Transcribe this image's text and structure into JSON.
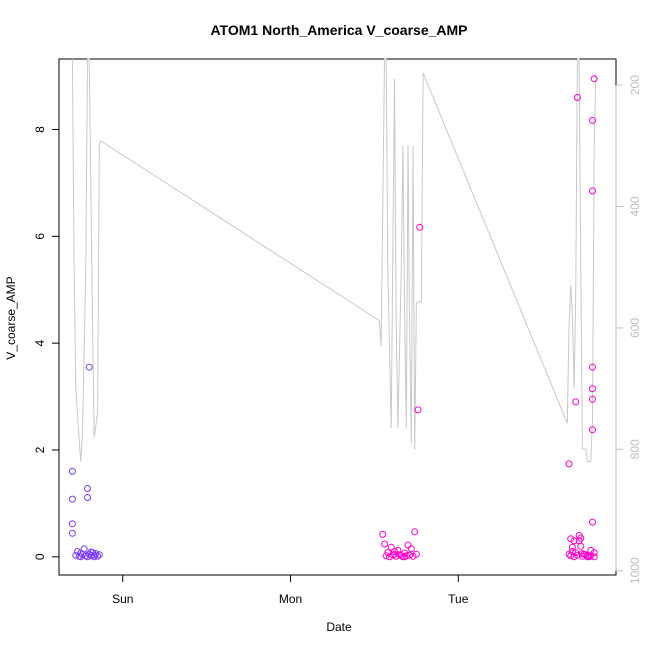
{
  "chart_data": {
    "type": "scatter",
    "title": "ATOM1 North_America V_coarse_AMP",
    "xlabel": "Date",
    "ylabel": "V_coarse_AMP",
    "x_ticks": [
      "Sun",
      "Mon",
      "Tue"
    ],
    "x_tick_days": [
      1.0,
      2.0,
      3.0
    ],
    "xlim": [
      0.62,
      3.94
    ],
    "ylim": [
      -0.34,
      9.32
    ],
    "y_ticks": [
      0,
      2,
      4,
      6,
      8
    ],
    "y2_ticks": [
      200,
      400,
      600,
      800,
      1000
    ],
    "y2lim": [
      1007,
      157
    ],
    "y2_reversed": true,
    "grid": false,
    "legend": "none",
    "colors": {
      "early": "#7a3cf3",
      "late": "#ff00cc",
      "line": "#c8c8c8",
      "right_axis": "#bebebe"
    },
    "points": [
      [
        0.7,
        1.6
      ],
      [
        0.7,
        1.08
      ],
      [
        0.7,
        0.62
      ],
      [
        0.7,
        0.44
      ],
      [
        0.73,
        0.1
      ],
      [
        0.75,
        0.07
      ],
      [
        0.77,
        0.15
      ],
      [
        0.79,
        1.28
      ],
      [
        0.79,
        1.11
      ],
      [
        0.8,
        3.55
      ],
      [
        0.72,
        0.03
      ],
      [
        0.74,
        0.01
      ],
      [
        0.76,
        0.04
      ],
      [
        0.78,
        0.02
      ],
      [
        0.8,
        0.05
      ],
      [
        0.81,
        0.02
      ],
      [
        0.82,
        0.08
      ],
      [
        0.83,
        0.03
      ],
      [
        0.84,
        0.06
      ],
      [
        0.85,
        0.01
      ],
      [
        0.86,
        0.04
      ],
      [
        0.75,
        0.0
      ],
      [
        0.79,
        0.0
      ],
      [
        0.83,
        0.0
      ],
      [
        0.81,
        0.09
      ],
      [
        2.55,
        0.42
      ],
      [
        2.56,
        0.24
      ],
      [
        2.58,
        0.08
      ],
      [
        2.6,
        0.18
      ],
      [
        2.62,
        0.05
      ],
      [
        2.64,
        0.12
      ],
      [
        2.66,
        0.02
      ],
      [
        2.68,
        0.07
      ],
      [
        2.7,
        0.22
      ],
      [
        2.72,
        0.15
      ],
      [
        2.74,
        0.47
      ],
      [
        2.76,
        2.75
      ],
      [
        2.77,
        6.17
      ],
      [
        2.57,
        0.02
      ],
      [
        2.59,
        0.0
      ],
      [
        2.61,
        0.03
      ],
      [
        2.63,
        0.01
      ],
      [
        2.65,
        0.04
      ],
      [
        2.67,
        0.0
      ],
      [
        2.69,
        0.02
      ],
      [
        2.71,
        0.03
      ],
      [
        2.73,
        0.01
      ],
      [
        2.75,
        0.05
      ],
      [
        2.62,
        0.1
      ],
      [
        2.68,
        0.0
      ],
      [
        3.66,
        1.74
      ],
      [
        3.67,
        0.34
      ],
      [
        3.68,
        0.1
      ],
      [
        3.69,
        0.3
      ],
      [
        3.7,
        2.9
      ],
      [
        3.71,
        8.6
      ],
      [
        3.72,
        0.4
      ],
      [
        3.73,
        0.2
      ],
      [
        3.75,
        0.05
      ],
      [
        3.77,
        0.02
      ],
      [
        3.79,
        0.12
      ],
      [
        3.8,
        0.65
      ],
      [
        3.8,
        8.17
      ],
      [
        3.8,
        6.85
      ],
      [
        3.8,
        3.55
      ],
      [
        3.8,
        3.15
      ],
      [
        3.8,
        2.95
      ],
      [
        3.8,
        2.38
      ],
      [
        3.81,
        8.95
      ],
      [
        3.81,
        0.08
      ],
      [
        3.67,
        0.02
      ],
      [
        3.69,
        0.0
      ],
      [
        3.71,
        0.03
      ],
      [
        3.74,
        0.01
      ],
      [
        3.76,
        0.04
      ],
      [
        3.78,
        0.0
      ],
      [
        3.79,
        0.02
      ],
      [
        3.68,
        0.18
      ],
      [
        3.72,
        0.3
      ],
      [
        3.7,
        0.08
      ],
      [
        3.77,
        0.0
      ],
      [
        3.74,
        0.06
      ],
      [
        3.66,
        0.05
      ],
      [
        3.81,
        0.0
      ],
      [
        3.73,
        0.35
      ]
    ],
    "line": [
      [
        0.7,
        157
      ],
      [
        0.71,
        500
      ],
      [
        0.72,
        700
      ],
      [
        0.74,
        782
      ],
      [
        0.75,
        820
      ],
      [
        0.76,
        770
      ],
      [
        0.78,
        500
      ],
      [
        0.79,
        157
      ],
      [
        0.8,
        157
      ],
      [
        0.82,
        600
      ],
      [
        0.83,
        780
      ],
      [
        0.85,
        740
      ],
      [
        0.86,
        300
      ],
      [
        0.87,
        292
      ],
      [
        2.53,
        588
      ],
      [
        2.54,
        630
      ],
      [
        2.55,
        400
      ],
      [
        2.56,
        157
      ],
      [
        2.57,
        157
      ],
      [
        2.58,
        500
      ],
      [
        2.6,
        765
      ],
      [
        2.62,
        190
      ],
      [
        2.63,
        590
      ],
      [
        2.64,
        765
      ],
      [
        2.66,
        500
      ],
      [
        2.67,
        300
      ],
      [
        2.68,
        580
      ],
      [
        2.69,
        765
      ],
      [
        2.7,
        300
      ],
      [
        2.71,
        600
      ],
      [
        2.72,
        790
      ],
      [
        2.73,
        300
      ],
      [
        2.74,
        800
      ],
      [
        2.75,
        560
      ],
      [
        2.76,
        557
      ],
      [
        2.78,
        557
      ],
      [
        2.79,
        180
      ],
      [
        3.65,
        757
      ],
      [
        3.66,
        600
      ],
      [
        3.67,
        530
      ],
      [
        3.68,
        580
      ],
      [
        3.69,
        700
      ],
      [
        3.7,
        550
      ],
      [
        3.71,
        157
      ],
      [
        3.72,
        157
      ],
      [
        3.73,
        500
      ],
      [
        3.74,
        800
      ],
      [
        3.76,
        800
      ],
      [
        3.77,
        820
      ],
      [
        3.79,
        820
      ],
      [
        3.8,
        750
      ],
      [
        3.81,
        300
      ],
      [
        3.82,
        180
      ]
    ]
  }
}
